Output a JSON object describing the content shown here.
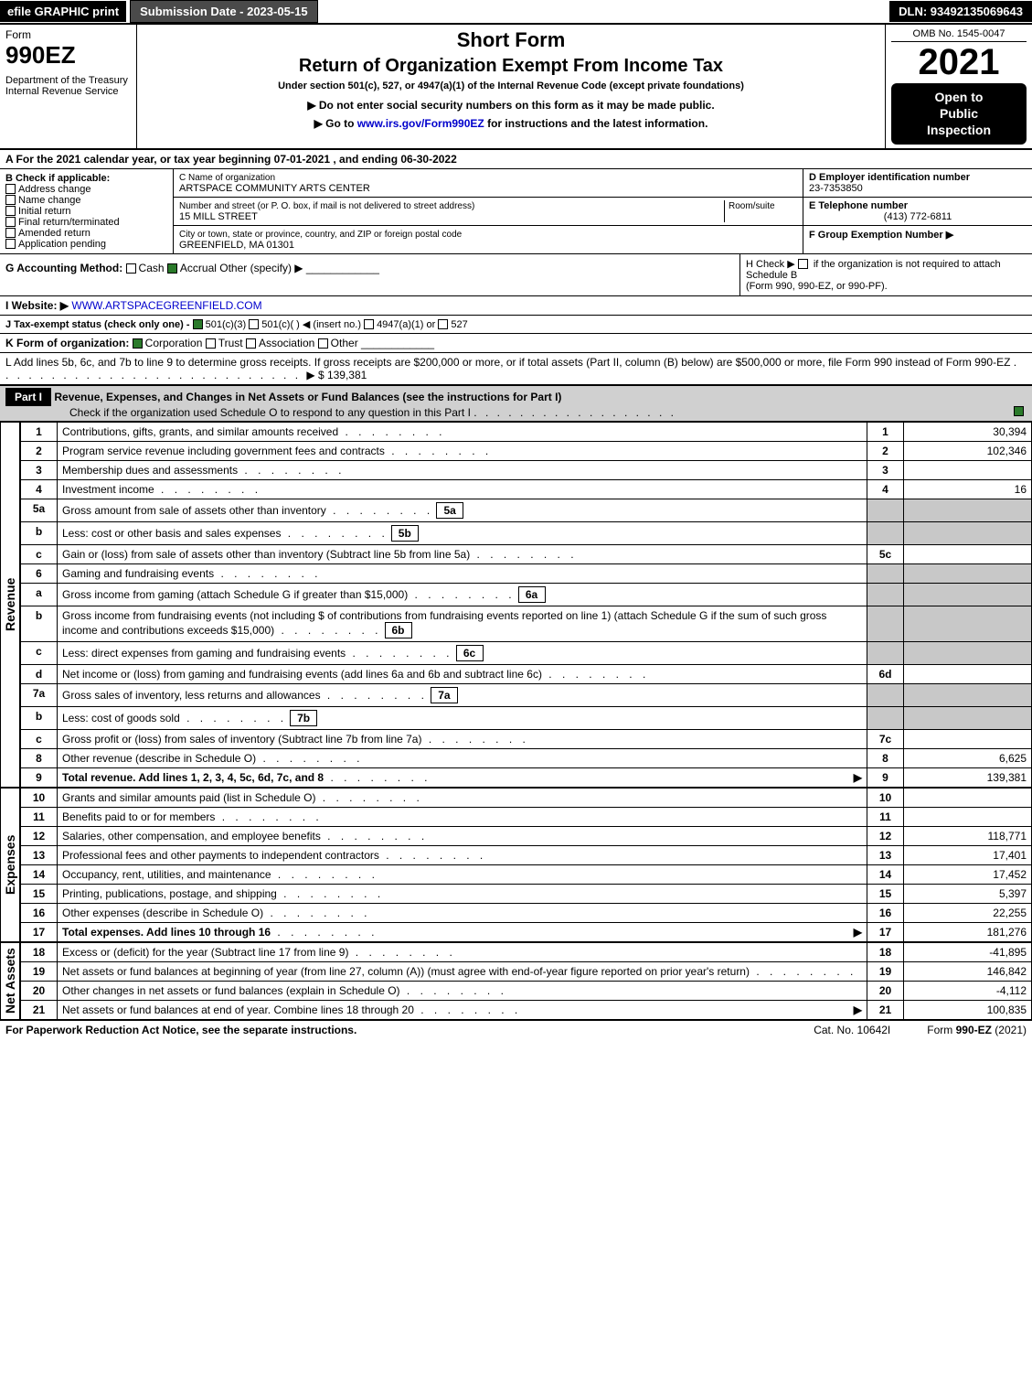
{
  "top": {
    "efile": "efile GRAPHIC print",
    "submission": "Submission Date - 2023-05-15",
    "dln": "DLN: 93492135069643"
  },
  "header": {
    "form_word": "Form",
    "form_num": "990EZ",
    "dept": "Department of the Treasury",
    "irs": "Internal Revenue Service",
    "short_form": "Short Form",
    "return_title": "Return of Organization Exempt From Income Tax",
    "under_section": "Under section 501(c), 527, or 4947(a)(1) of the Internal Revenue Code (except private foundations)",
    "no_ssn": "▶ Do not enter social security numbers on this form as it may be made public.",
    "goto": "▶ Go to www.irs.gov/Form990EZ for instructions and the latest information.",
    "goto_url": "www.irs.gov/Form990EZ",
    "omb": "OMB No. 1545-0047",
    "year": "2021",
    "open1": "Open to",
    "open2": "Public",
    "open3": "Inspection"
  },
  "sectionA": "A  For the 2021 calendar year, or tax year beginning 07-01-2021 , and ending 06-30-2022",
  "boxB": {
    "title": "B  Check if applicable:",
    "items": [
      "Address change",
      "Name change",
      "Initial return",
      "Final return/terminated",
      "Amended return",
      "Application pending"
    ]
  },
  "boxC": {
    "label_name": "C Name of organization",
    "name": "ARTSPACE COMMUNITY ARTS CENTER",
    "label_street": "Number and street (or P. O. box, if mail is not delivered to street address)",
    "room": "Room/suite",
    "street": "15 MILL STREET",
    "label_city": "City or town, state or province, country, and ZIP or foreign postal code",
    "city": "GREENFIELD, MA  01301"
  },
  "boxD": {
    "label": "D Employer identification number",
    "value": "23-7353850"
  },
  "boxE": {
    "label": "E Telephone number",
    "value": "(413) 772-6811"
  },
  "boxF": {
    "label": "F Group Exemption Number  ▶"
  },
  "lineG": {
    "label": "G Accounting Method:",
    "cash": "Cash",
    "accrual": "Accrual",
    "other": "Other (specify) ▶"
  },
  "lineH": {
    "text1": "H  Check ▶",
    "text2": "if the organization is not required to attach Schedule B",
    "text3": "(Form 990, 990-EZ, or 990-PF)."
  },
  "lineI": {
    "label": "I Website: ▶",
    "value": "WWW.ARTSPACEGREENFIELD.COM"
  },
  "lineJ": {
    "label": "J Tax-exempt status (check only one) -",
    "opt1": "501(c)(3)",
    "opt2": "501(c)(  ) ◀ (insert no.)",
    "opt3": "4947(a)(1) or",
    "opt4": "527"
  },
  "lineK": {
    "label": "K Form of organization:",
    "opts": [
      "Corporation",
      "Trust",
      "Association",
      "Other"
    ]
  },
  "lineL": {
    "text": "L Add lines 5b, 6c, and 7b to line 9 to determine gross receipts. If gross receipts are $200,000 or more, or if total assets (Part II, column (B) below) are $500,000 or more, file Form 990 instead of Form 990-EZ",
    "arrow": "▶ $ 139,381"
  },
  "part1": {
    "label": "Part I",
    "title": "Revenue, Expenses, and Changes in Net Assets or Fund Balances (see the instructions for Part I)",
    "subtitle": "Check if the organization used Schedule O to respond to any question in this Part I"
  },
  "revenue_label": "Revenue",
  "expenses_label": "Expenses",
  "netassets_label": "Net Assets",
  "rows_rev": [
    {
      "n": "1",
      "t": "Contributions, gifts, grants, and similar amounts received",
      "c": "1",
      "a": "30,394"
    },
    {
      "n": "2",
      "t": "Program service revenue including government fees and contracts",
      "c": "2",
      "a": "102,346"
    },
    {
      "n": "3",
      "t": "Membership dues and assessments",
      "c": "3",
      "a": ""
    },
    {
      "n": "4",
      "t": "Investment income",
      "c": "4",
      "a": "16"
    },
    {
      "n": "5a",
      "t": "Gross amount from sale of assets other than inventory",
      "sub": "5a"
    },
    {
      "n": "b",
      "t": "Less: cost or other basis and sales expenses",
      "sub": "5b"
    },
    {
      "n": "c",
      "t": "Gain or (loss) from sale of assets other than inventory (Subtract line 5b from line 5a)",
      "c": "5c",
      "a": ""
    },
    {
      "n": "6",
      "t": "Gaming and fundraising events"
    },
    {
      "n": "a",
      "t": "Gross income from gaming (attach Schedule G if greater than $15,000)",
      "sub": "6a"
    },
    {
      "n": "b",
      "t": "Gross income from fundraising events (not including $                    of contributions from fundraising events reported on line 1) (attach Schedule G if the sum of such gross income and contributions exceeds $15,000)",
      "sub": "6b"
    },
    {
      "n": "c",
      "t": "Less: direct expenses from gaming and fundraising events",
      "sub": "6c"
    },
    {
      "n": "d",
      "t": "Net income or (loss) from gaming and fundraising events (add lines 6a and 6b and subtract line 6c)",
      "c": "6d",
      "a": ""
    },
    {
      "n": "7a",
      "t": "Gross sales of inventory, less returns and allowances",
      "sub": "7a"
    },
    {
      "n": "b",
      "t": "Less: cost of goods sold",
      "sub": "7b"
    },
    {
      "n": "c",
      "t": "Gross profit or (loss) from sales of inventory (Subtract line 7b from line 7a)",
      "c": "7c",
      "a": ""
    },
    {
      "n": "8",
      "t": "Other revenue (describe in Schedule O)",
      "c": "8",
      "a": "6,625"
    },
    {
      "n": "9",
      "t": "Total revenue. Add lines 1, 2, 3, 4, 5c, 6d, 7c, and 8",
      "c": "9",
      "a": "139,381",
      "bold": true,
      "arrow": "▶"
    }
  ],
  "rows_exp": [
    {
      "n": "10",
      "t": "Grants and similar amounts paid (list in Schedule O)",
      "c": "10",
      "a": ""
    },
    {
      "n": "11",
      "t": "Benefits paid to or for members",
      "c": "11",
      "a": ""
    },
    {
      "n": "12",
      "t": "Salaries, other compensation, and employee benefits",
      "c": "12",
      "a": "118,771"
    },
    {
      "n": "13",
      "t": "Professional fees and other payments to independent contractors",
      "c": "13",
      "a": "17,401"
    },
    {
      "n": "14",
      "t": "Occupancy, rent, utilities, and maintenance",
      "c": "14",
      "a": "17,452"
    },
    {
      "n": "15",
      "t": "Printing, publications, postage, and shipping",
      "c": "15",
      "a": "5,397"
    },
    {
      "n": "16",
      "t": "Other expenses (describe in Schedule O)",
      "c": "16",
      "a": "22,255"
    },
    {
      "n": "17",
      "t": "Total expenses. Add lines 10 through 16",
      "c": "17",
      "a": "181,276",
      "bold": true,
      "arrow": "▶"
    }
  ],
  "rows_net": [
    {
      "n": "18",
      "t": "Excess or (deficit) for the year (Subtract line 17 from line 9)",
      "c": "18",
      "a": "-41,895"
    },
    {
      "n": "19",
      "t": "Net assets or fund balances at beginning of year (from line 27, column (A)) (must agree with end-of-year figure reported on prior year's return)",
      "c": "19",
      "a": "146,842"
    },
    {
      "n": "20",
      "t": "Other changes in net assets or fund balances (explain in Schedule O)",
      "c": "20",
      "a": "-4,112"
    },
    {
      "n": "21",
      "t": "Net assets or fund balances at end of year. Combine lines 18 through 20",
      "c": "21",
      "a": "100,835",
      "arrow": "▶"
    }
  ],
  "footer": {
    "left": "For Paperwork Reduction Act Notice, see the separate instructions.",
    "center": "Cat. No. 10642I",
    "right": "Form 990-EZ (2021)"
  }
}
